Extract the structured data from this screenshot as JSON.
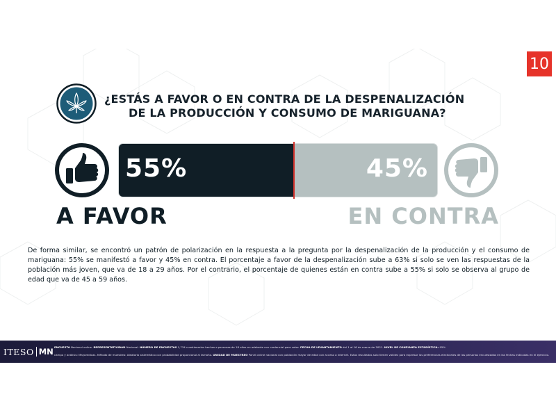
{
  "page_number": "10",
  "question": {
    "line1": "¿ESTÁS A FAVOR O EN CONTRA DE LA DESPENALIZACIÓN",
    "line2": "DE LA PRODUCCIÓN Y CONSUMO DE MARIGUANA?"
  },
  "icons": {
    "question": "cannabis-leaf-icon",
    "favor": "thumbs-up-icon",
    "contra": "thumbs-down-icon"
  },
  "chart_data": {
    "type": "bar",
    "orientation": "horizontal-stacked",
    "categories": [
      "A FAVOR",
      "EN CONTRA"
    ],
    "values": [
      55,
      45
    ],
    "value_labels": [
      "55%",
      "45%"
    ],
    "unit": "%",
    "colors": [
      "#101e26",
      "#b5c0c0"
    ],
    "divider_color": "#d3322b"
  },
  "labels": {
    "favor": "A FAVOR",
    "contra": "EN CONTRA"
  },
  "body_text": "De forma similar, se encontró un patrón de polarización en la respuesta a la pregunta por la despenalización de la producción y el consumo de mariguana: 55% se manifestó a favor y 45% en contra. El porcentaje a favor de la despenalización sube a 63% si solo se ven las respuestas de la población más joven, que va de 18 a 29 años. Por el contrario, el porcentaje de quienes están en contra sube a 55% si solo se observa al grupo de edad que va de 45 a 59 años.",
  "footer": {
    "logo_iteso": "ITESO",
    "logo_mn": "MN",
    "line1": [
      {
        "k": "ENCUESTA",
        "v": "Nacional online."
      },
      {
        "k": "REPRESENTATIVIDAD",
        "v": "Nacional."
      },
      {
        "k": "NÚMERO DE ENCUESTAS",
        "v": "1,734 cuestionarios hechos a personas de 18 años en adelante con credencial para votar."
      },
      {
        "k": "FECHA DE LEVANTAMIENTO",
        "v": "del 1 al 16 de marzo de 2021."
      },
      {
        "k": "NIVEL DE CONFIANZA ESTADÍSTICA:",
        "v": "95%"
      }
    ],
    "line2": [
      {
        "k": "",
        "v": "campo y análisis: Mayoredicas. Método de muestreo: Aleatorio sistemático con probabilidad proporcional al tamaño."
      },
      {
        "k": "UNIDAD DE MUESTREO",
        "v": "Panel online nacional con población mayor de edad con acceso a internet."
      },
      {
        "k": "",
        "v": "Estos resultados solo tienen validez para expresar las preferencias electorales de las personas encuestadas en las fechas indicadas en el ejercicio."
      }
    ]
  },
  "colors": {
    "accent": "#e6332a",
    "dark": "#101e26",
    "grey": "#b5c0c0",
    "footer": "#2a2550"
  }
}
